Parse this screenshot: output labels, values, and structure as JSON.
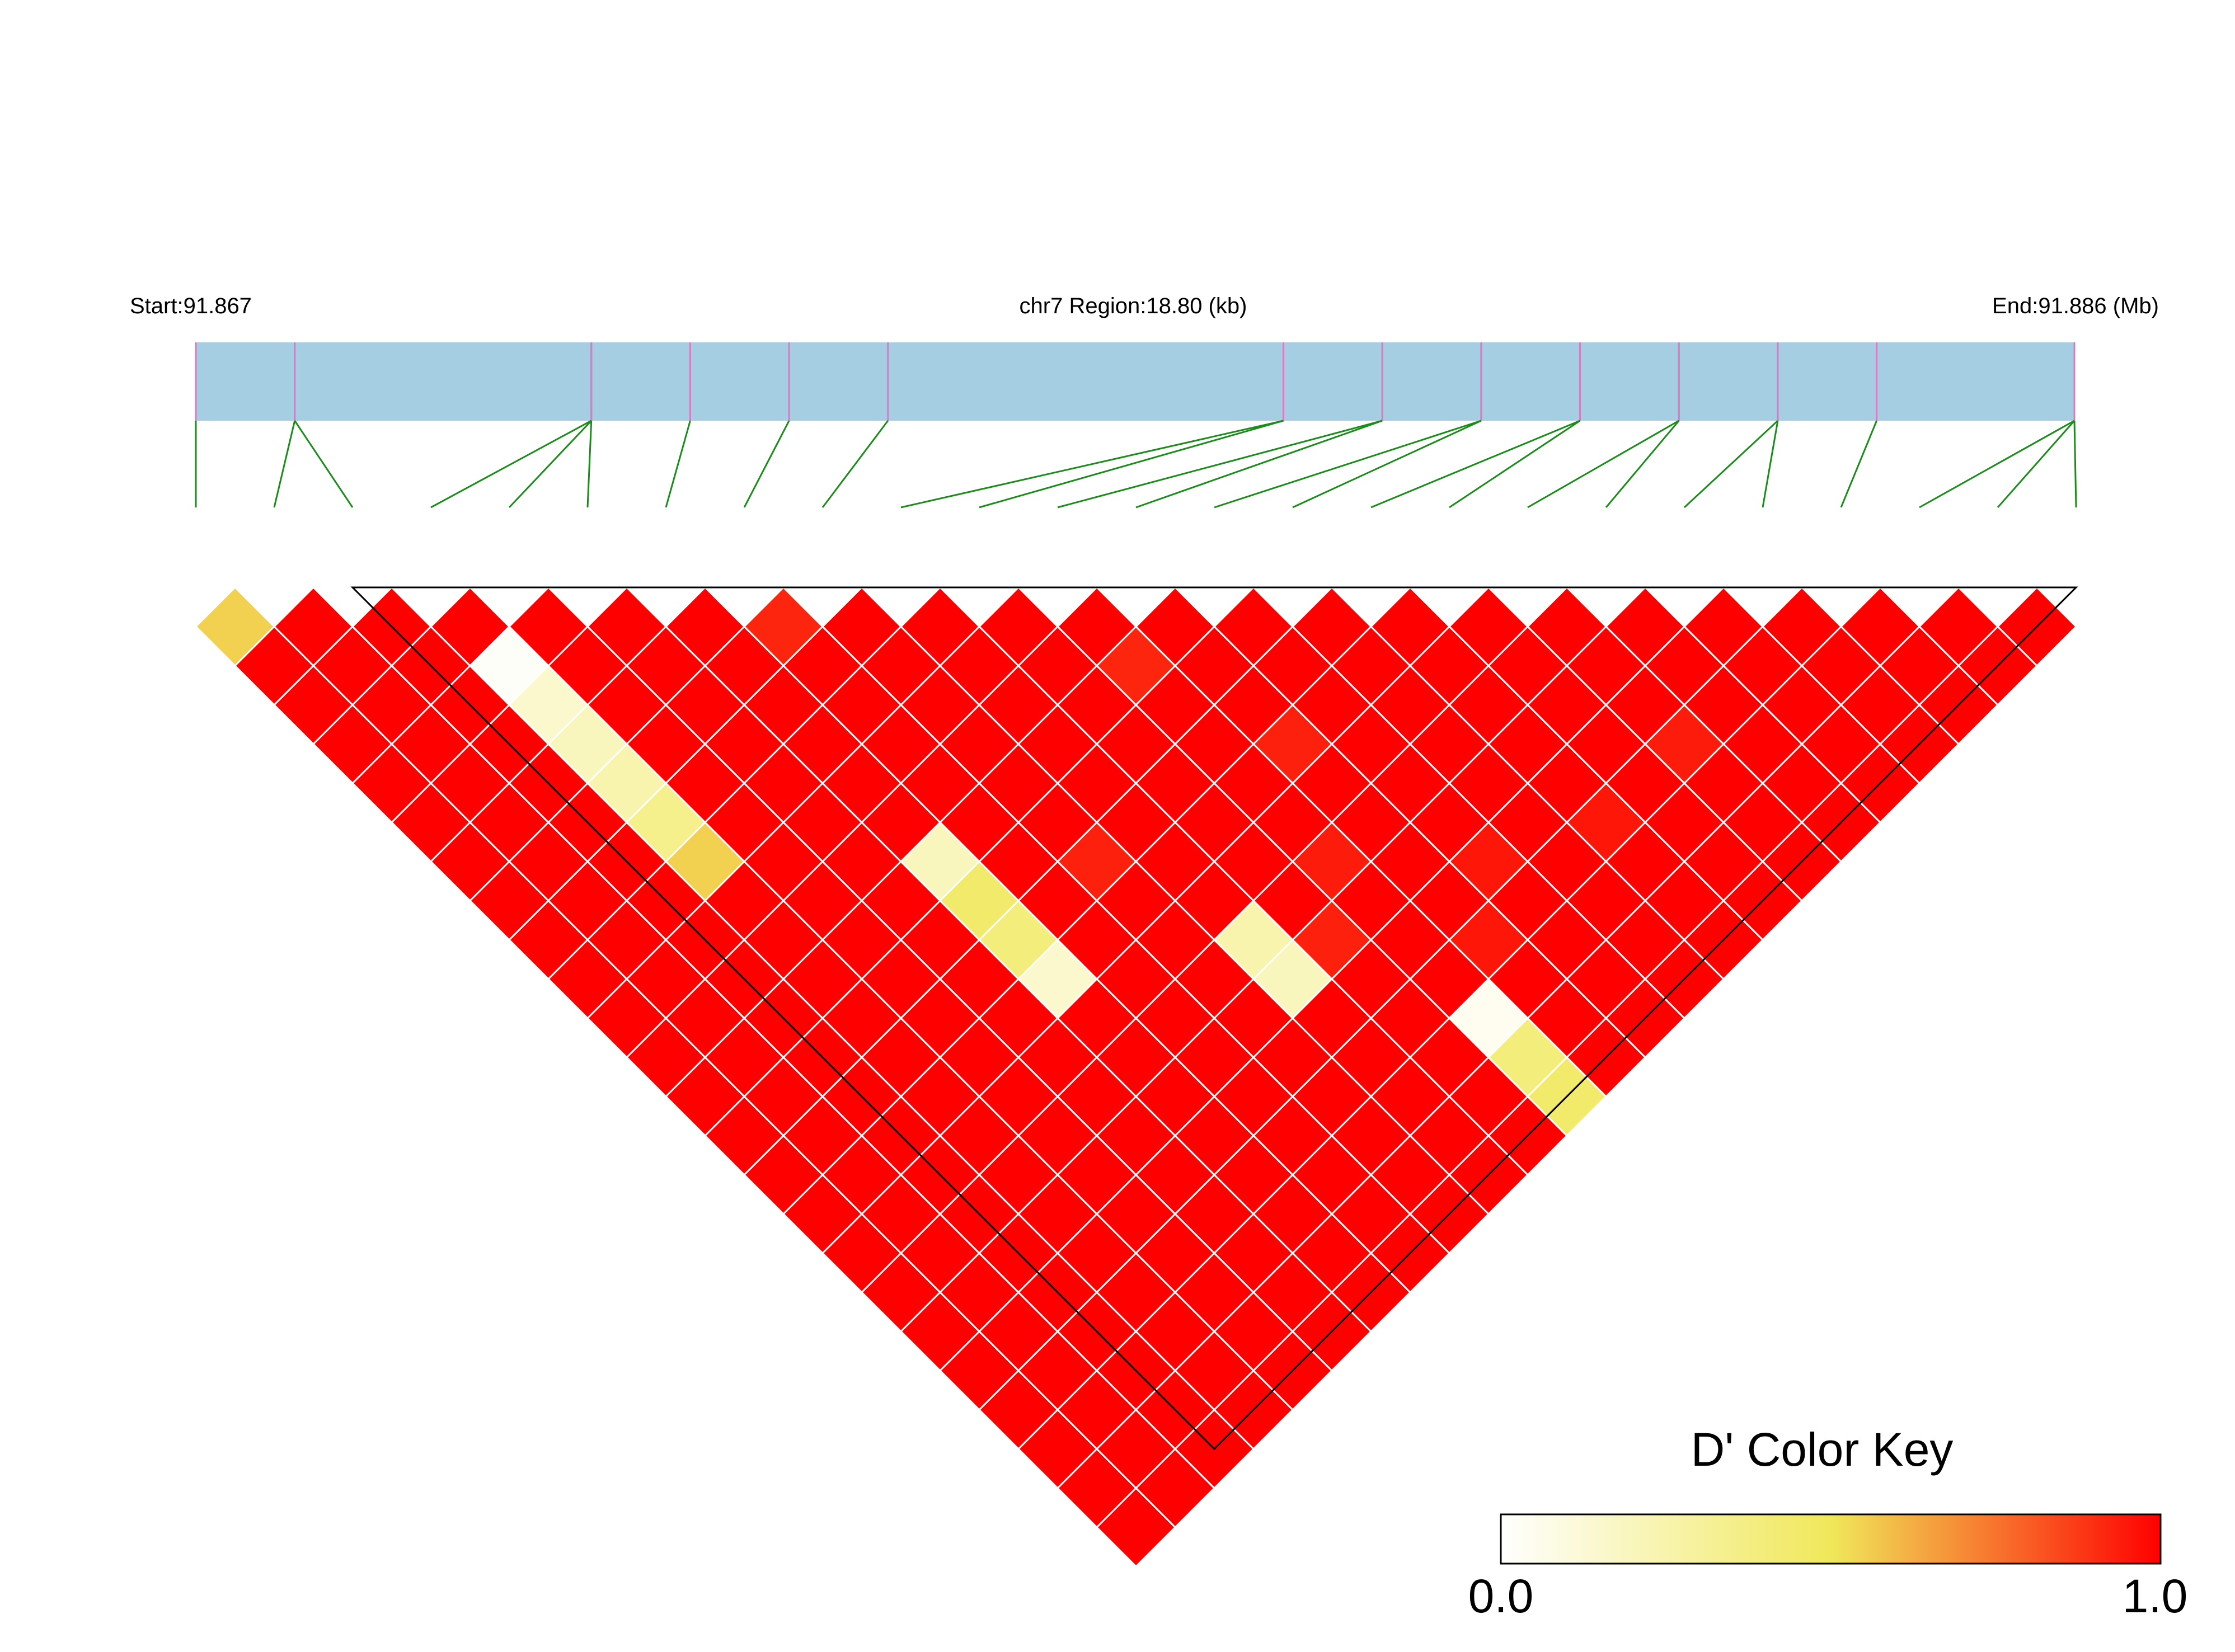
{
  "header": {
    "start_label": "Start:91.867",
    "region_label": "chr7 Region:18.80 (kb)",
    "end_label": "End:91.886 (Mb)"
  },
  "colors": {
    "track": "#a6cee3",
    "snp_tick": "#d97bc0",
    "connector": "#1a8c1a",
    "high": "#ff0000",
    "mid": "#f0e85a",
    "low": "#ffffff",
    "block_outline": "#000000",
    "cell_border": "#ffffff"
  },
  "legend": {
    "title": "D' Color Key",
    "min_label": "0.0",
    "max_label": "1.0"
  },
  "chart_data": {
    "type": "heatmap",
    "metric": "D'",
    "chromosome": "chr7",
    "region_start_mb": 91.867,
    "region_end_mb": 91.886,
    "region_length_kb": 18.8,
    "snp_count": 25,
    "snp_positions_mb": [
      91.867,
      91.868,
      91.868,
      91.871,
      91.871,
      91.871,
      91.872,
      91.873,
      91.874,
      91.878,
      91.878,
      91.879,
      91.879,
      91.88,
      91.88,
      91.881,
      91.881,
      91.882,
      91.882,
      91.883,
      91.883,
      91.884,
      91.886,
      91.886,
      91.886
    ],
    "default_dprime": 1.0,
    "dprime_exceptions": [
      {
        "i": 1,
        "j": 2,
        "d": 0.55
      },
      {
        "i": 4,
        "j": 6,
        "d": 0.02
      },
      {
        "i": 4,
        "j": 7,
        "d": 0.15
      },
      {
        "i": 4,
        "j": 8,
        "d": 0.2
      },
      {
        "i": 4,
        "j": 9,
        "d": 0.25
      },
      {
        "i": 4,
        "j": 10,
        "d": 0.35
      },
      {
        "i": 4,
        "j": 11,
        "d": 0.55
      },
      {
        "i": 7,
        "j": 14,
        "d": 0.2
      },
      {
        "i": 7,
        "j": 15,
        "d": 0.45
      },
      {
        "i": 7,
        "j": 16,
        "d": 0.4
      },
      {
        "i": 7,
        "j": 17,
        "d": 0.15
      },
      {
        "i": 10,
        "j": 19,
        "d": 0.25
      },
      {
        "i": 10,
        "j": 20,
        "d": 0.2
      },
      {
        "i": 12,
        "j": 23,
        "d": 0.05
      },
      {
        "i": 12,
        "j": 24,
        "d": 0.4
      },
      {
        "i": 12,
        "j": 25,
        "d": 0.45
      },
      {
        "i": 8,
        "j": 9,
        "d": 0.92
      },
      {
        "i": 12,
        "j": 14,
        "d": 0.92
      },
      {
        "i": 13,
        "j": 17,
        "d": 0.93
      },
      {
        "i": 18,
        "j": 22,
        "d": 0.94
      },
      {
        "i": 9,
        "j": 16,
        "d": 0.93
      },
      {
        "i": 12,
        "j": 19,
        "d": 0.94
      },
      {
        "i": 14,
        "j": 21,
        "d": 0.95
      },
      {
        "i": 16,
        "j": 22,
        "d": 0.95
      },
      {
        "i": 11,
        "j": 20,
        "d": 0.93
      },
      {
        "i": 13,
        "j": 22,
        "d": 0.95
      }
    ],
    "ld_block": {
      "first_snp": 3,
      "last_snp": 25
    },
    "color_scale": {
      "min": 0.0,
      "max": 1.0,
      "mid_value": 0.5
    }
  }
}
